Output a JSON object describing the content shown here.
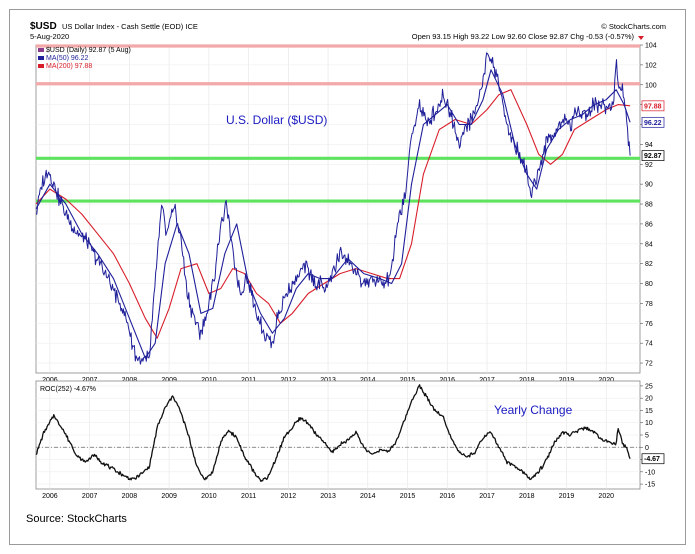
{
  "header": {
    "symbol": "$USD",
    "name": "US Dollar Index - Cash Settle (EOD) ICE",
    "date": "5-Aug-2020",
    "brand": "© StockCharts.com",
    "ohlc": "Open 93.15  High 93.22  Low 92.60  Close 92.87  Chg -0.53 (-0.57%)"
  },
  "source": "Source: StockCharts",
  "colors": {
    "price": "#1f1f9a",
    "ma50": "#1f1f9a",
    "ma200": "#d81e2a",
    "support": "#5fe35f",
    "resistance": "#f2a9a9",
    "roc": "#111111",
    "annotation": "#1a1ac0"
  },
  "chart_data": [
    {
      "type": "line",
      "annotation": "U.S. Dollar ($USD)",
      "legend": {
        "placement": "top-left",
        "entries": [
          "$USD (Daily) 92.87 (5 Aug)",
          "MA(50) 96.22",
          "MA(200) 97.88"
        ]
      },
      "xlabels": [
        "2006",
        "2007",
        "2008",
        "2009",
        "2010",
        "2011",
        "2012",
        "2013",
        "2014",
        "2015",
        "2016",
        "2017",
        "2018",
        "2019",
        "2020"
      ],
      "xlim": [
        2005.65,
        2020.85
      ],
      "ylim": [
        71,
        104
      ],
      "yticks": [
        72,
        74,
        76,
        78,
        80,
        82,
        84,
        86,
        88,
        90,
        92,
        94,
        96,
        98,
        100,
        102,
        104
      ],
      "value_tags": [
        {
          "label": "97.88",
          "value": 97.88,
          "series": "MA(200)"
        },
        {
          "label": "96.22",
          "value": 96.22,
          "series": "MA(50)"
        },
        {
          "label": "92.87",
          "value": 92.87,
          "series": "$USD"
        }
      ],
      "horizontal_lines": [
        {
          "value": 103.9,
          "color": "resistance"
        },
        {
          "value": 100.1,
          "color": "resistance"
        },
        {
          "value": 92.6,
          "color": "support"
        },
        {
          "value": 88.3,
          "color": "support"
        }
      ],
      "series": [
        {
          "name": "$USD (Daily)",
          "x": [
            2005.65,
            2005.8,
            2005.95,
            2006.2,
            2006.45,
            2006.7,
            2006.95,
            2007.2,
            2007.45,
            2007.7,
            2007.95,
            2008.15,
            2008.3,
            2008.5,
            2008.65,
            2008.8,
            2008.95,
            2009.1,
            2009.3,
            2009.45,
            2009.6,
            2009.8,
            2009.95,
            2010.15,
            2010.3,
            2010.45,
            2010.6,
            2010.8,
            2010.95,
            2011.1,
            2011.3,
            2011.45,
            2011.6,
            2011.75,
            2011.95,
            2012.1,
            2012.3,
            2012.45,
            2012.6,
            2012.75,
            2012.95,
            2013.1,
            2013.3,
            2013.5,
            2013.7,
            2013.9,
            2014.1,
            2014.3,
            2014.45,
            2014.6,
            2014.75,
            2014.95,
            2015.1,
            2015.3,
            2015.5,
            2015.7,
            2015.9,
            2016.1,
            2016.3,
            2016.5,
            2016.7,
            2016.9,
            2017.0,
            2017.15,
            2017.3,
            2017.45,
            2017.6,
            2017.8,
            2017.95,
            2018.1,
            2018.2,
            2018.35,
            2018.5,
            2018.7,
            2018.9,
            2019.1,
            2019.3,
            2019.5,
            2019.7,
            2019.9,
            2020.05,
            2020.2,
            2020.25,
            2020.3,
            2020.4,
            2020.5,
            2020.6
          ],
          "y": [
            87,
            90,
            91.5,
            89,
            86.5,
            85,
            84,
            82.5,
            80.5,
            78.5,
            76,
            73,
            72,
            72.5,
            80,
            87.5,
            85,
            88,
            84.5,
            79,
            77,
            75,
            77,
            81,
            86,
            88,
            83,
            79,
            81,
            78.5,
            76,
            74.5,
            74,
            77,
            79,
            80,
            81,
            82,
            80.5,
            80,
            79.5,
            81,
            83,
            82.5,
            81,
            80,
            80.5,
            80,
            79.8,
            81.5,
            86,
            89,
            95,
            98,
            96,
            97.5,
            99,
            97,
            94,
            96,
            97,
            100.5,
            103,
            102,
            100,
            97,
            95,
            93,
            92,
            89,
            90,
            92,
            94.5,
            95,
            96.5,
            96,
            97.5,
            97,
            98,
            98,
            97.5,
            99,
            102.8,
            100,
            100,
            97,
            92.87
          ]
        },
        {
          "name": "MA(50)",
          "x": [
            2005.65,
            2006.0,
            2006.4,
            2006.8,
            2007.2,
            2007.6,
            2008.0,
            2008.4,
            2008.65,
            2008.9,
            2009.2,
            2009.5,
            2009.8,
            2010.1,
            2010.4,
            2010.7,
            2011.0,
            2011.3,
            2011.6,
            2011.9,
            2012.2,
            2012.5,
            2012.8,
            2013.1,
            2013.5,
            2013.9,
            2014.3,
            2014.6,
            2014.85,
            2015.1,
            2015.4,
            2015.7,
            2016.0,
            2016.3,
            2016.6,
            2016.9,
            2017.1,
            2017.4,
            2017.7,
            2018.0,
            2018.25,
            2018.5,
            2018.8,
            2019.1,
            2019.4,
            2019.7,
            2020.0,
            2020.25,
            2020.45,
            2020.6
          ],
          "y": [
            87.5,
            90,
            88,
            85,
            83,
            80.5,
            76.5,
            72.5,
            74,
            82,
            86,
            83,
            77,
            77.5,
            83,
            86,
            80,
            77,
            75,
            76.5,
            79.5,
            81,
            80.5,
            80.5,
            82.5,
            81,
            80.5,
            80,
            82,
            90,
            96,
            97,
            98,
            96,
            96,
            98.5,
            101.5,
            99,
            94,
            91,
            89.5,
            93.5,
            95.5,
            96.5,
            97,
            98,
            98.5,
            99.5,
            98,
            96.22
          ]
        },
        {
          "name": "MA(200)",
          "x": [
            2005.65,
            2006.0,
            2006.4,
            2006.8,
            2007.2,
            2007.6,
            2008.0,
            2008.4,
            2008.7,
            2009.0,
            2009.3,
            2009.7,
            2010.0,
            2010.3,
            2010.6,
            2010.9,
            2011.2,
            2011.5,
            2011.8,
            2012.1,
            2012.5,
            2012.9,
            2013.3,
            2013.7,
            2014.1,
            2014.5,
            2014.8,
            2015.1,
            2015.4,
            2015.8,
            2016.2,
            2016.6,
            2017.0,
            2017.3,
            2017.6,
            2018.0,
            2018.3,
            2018.6,
            2018.9,
            2019.2,
            2019.6,
            2020.0,
            2020.3,
            2020.6
          ],
          "y": [
            88,
            89.5,
            88.5,
            87,
            85,
            83,
            80,
            76.5,
            74.5,
            77.5,
            81.5,
            82,
            79,
            79.5,
            81.5,
            81,
            79,
            78,
            76,
            77,
            79,
            80,
            81,
            81.5,
            81,
            80.5,
            80.5,
            84,
            91,
            95.5,
            96.5,
            96,
            97.5,
            99,
            99.5,
            96,
            93,
            92,
            93,
            95.5,
            96.5,
            97.5,
            98,
            97.88
          ]
        }
      ]
    },
    {
      "type": "line",
      "annotation": "Yearly Change",
      "legend": {
        "placement": "top-left",
        "entries": [
          "ROC(252) -4.67%"
        ]
      },
      "xlabels": [
        "2006",
        "2007",
        "2008",
        "2009",
        "2010",
        "2011",
        "2012",
        "2013",
        "2014",
        "2015",
        "2016",
        "2017",
        "2018",
        "2019",
        "2020"
      ],
      "xlim": [
        2005.65,
        2020.85
      ],
      "ylim": [
        -17,
        27
      ],
      "yticks": [
        -15,
        -10,
        -5,
        0,
        5,
        10,
        15,
        20,
        25
      ],
      "value_tags": [
        {
          "label": "-4.67",
          "value": -4.67
        }
      ],
      "zero_line": true,
      "series": [
        {
          "name": "ROC(252)",
          "x": [
            2005.65,
            2005.85,
            2006.1,
            2006.3,
            2006.5,
            2006.7,
            2006.9,
            2007.1,
            2007.3,
            2007.5,
            2007.7,
            2007.9,
            2008.1,
            2008.3,
            2008.5,
            2008.7,
            2008.9,
            2009.1,
            2009.3,
            2009.5,
            2009.7,
            2009.9,
            2010.1,
            2010.3,
            2010.5,
            2010.7,
            2010.9,
            2011.1,
            2011.3,
            2011.5,
            2011.7,
            2011.9,
            2012.1,
            2012.3,
            2012.5,
            2012.7,
            2012.9,
            2013.1,
            2013.3,
            2013.5,
            2013.7,
            2013.9,
            2014.1,
            2014.3,
            2014.5,
            2014.7,
            2014.9,
            2015.1,
            2015.3,
            2015.5,
            2015.7,
            2015.9,
            2016.1,
            2016.3,
            2016.5,
            2016.7,
            2016.9,
            2017.1,
            2017.3,
            2017.5,
            2017.7,
            2017.9,
            2018.1,
            2018.3,
            2018.5,
            2018.7,
            2018.9,
            2019.1,
            2019.3,
            2019.5,
            2019.7,
            2019.9,
            2020.1,
            2020.25,
            2020.3,
            2020.4,
            2020.5,
            2020.6
          ],
          "y": [
            -3,
            6,
            13,
            8,
            2,
            -4,
            -6,
            -3,
            -6,
            -8,
            -10,
            -12,
            -13,
            -11,
            -8,
            8,
            16,
            21,
            14,
            4,
            -8,
            -13,
            -10,
            2,
            7,
            4,
            -4,
            -9,
            -14,
            -12,
            -4,
            4,
            8,
            12,
            10,
            5,
            2,
            -2,
            1,
            3,
            6,
            0,
            -3,
            -1,
            -2,
            2,
            10,
            19,
            25,
            20,
            15,
            12,
            4,
            -2,
            -4,
            -2,
            4,
            6,
            0,
            -6,
            -8,
            -10,
            -13,
            -10,
            -5,
            2,
            6,
            5,
            7,
            8,
            6,
            3,
            2,
            1,
            8,
            2,
            0,
            -4.67
          ]
        }
      ]
    }
  ]
}
